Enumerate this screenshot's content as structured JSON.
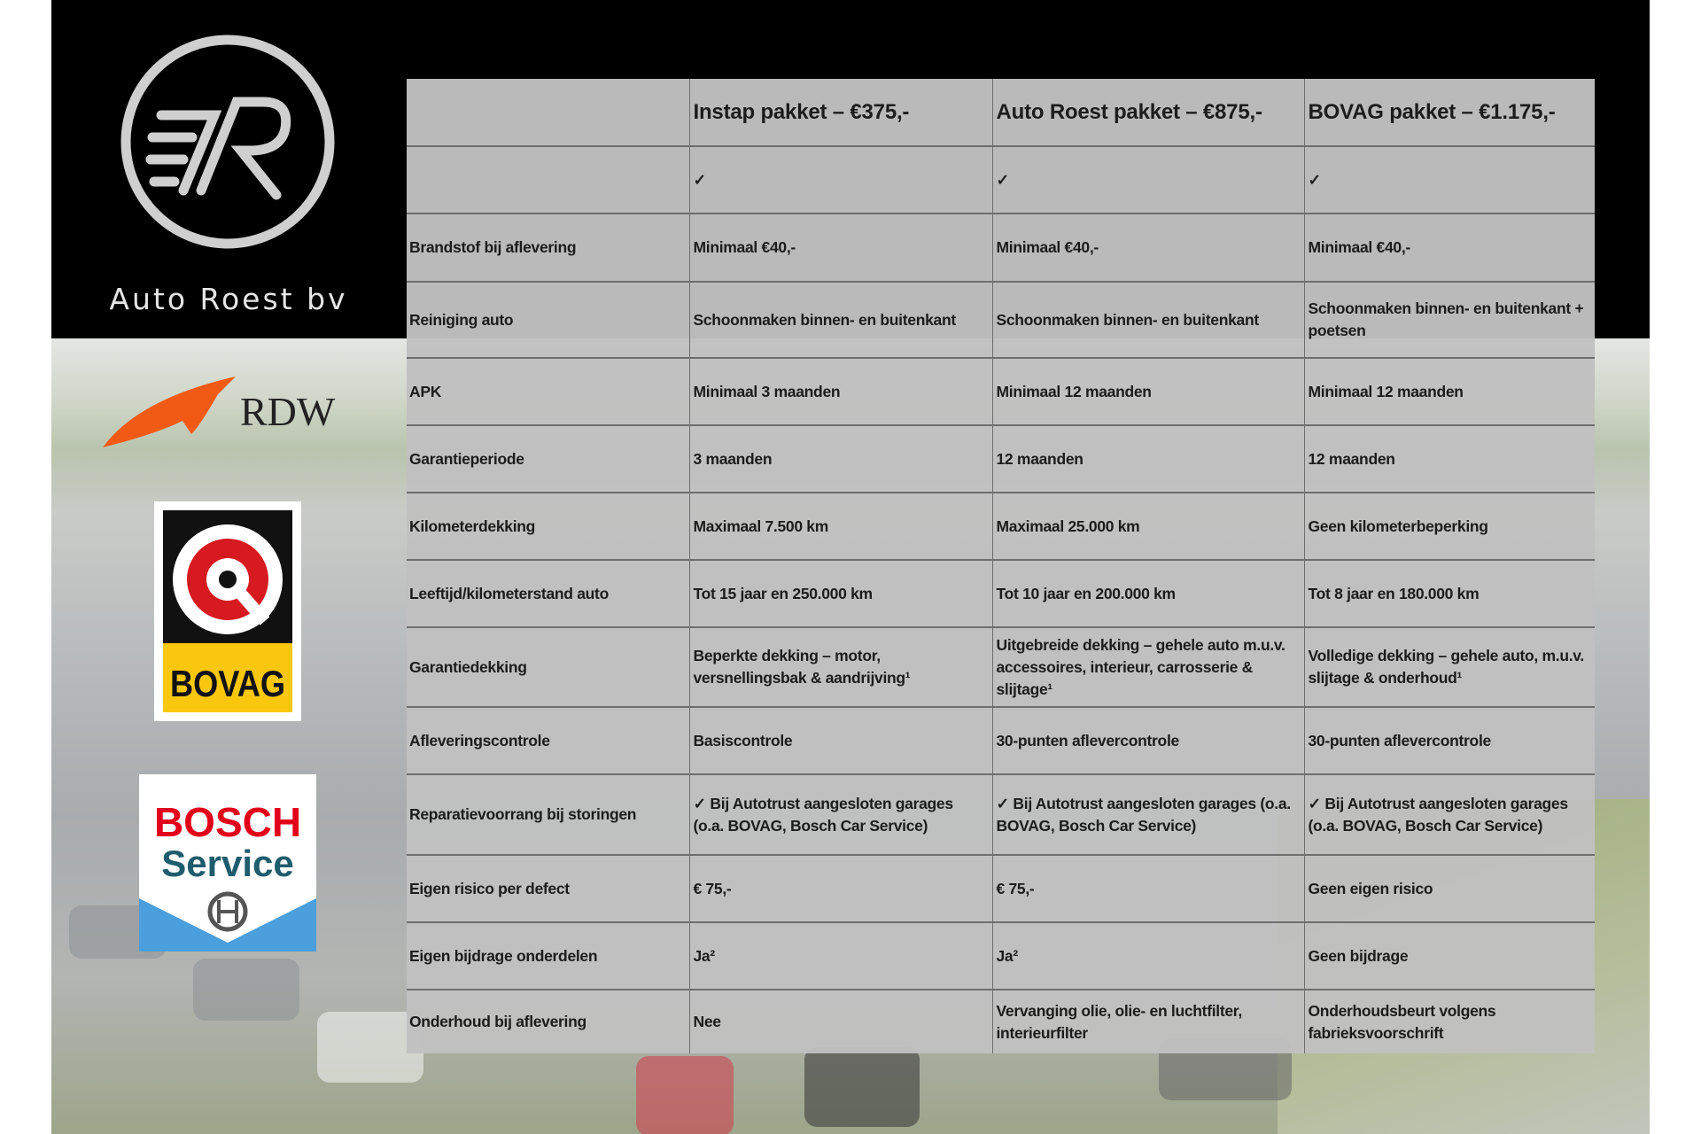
{
  "brand": {
    "name": "Auto Roest bv",
    "logo_letters": "R"
  },
  "logos": {
    "rdw": "RDW",
    "bovag": "BOVAG",
    "bosch_line1": "BOSCH",
    "bosch_line2": "Service"
  },
  "colors": {
    "rdw_orange": "#f05a14",
    "bovag_yellow": "#f9c80e",
    "bovag_red": "#d71920",
    "bosch_red": "#e2001a",
    "bosch_teal": "#1f5d6e",
    "bosch_blue": "#4a9fdc"
  },
  "table": {
    "headers": [
      "",
      "Instap pakket – €375,-",
      "Auto Roest pakket – €875,-",
      "BOVAG pakket – €1.175,-"
    ],
    "rows": [
      [
        "",
        "✓",
        "✓",
        "✓"
      ],
      [
        "Brandstof bij aflevering",
        "Minimaal €40,-",
        "Minimaal €40,-",
        "Minimaal €40,-"
      ],
      [
        "Reiniging auto",
        "Schoonmaken binnen- en buitenkant",
        "Schoonmaken binnen- en buitenkant",
        "Schoonmaken binnen- en buitenkant + poetsen"
      ],
      [
        "APK",
        "Minimaal 3 maanden",
        "Minimaal 12 maanden",
        "Minimaal 12 maanden"
      ],
      [
        "Garantieperiode",
        "3 maanden",
        "12 maanden",
        "12 maanden"
      ],
      [
        "Kilometerdekking",
        "Maximaal 7.500 km",
        "Maximaal 25.000 km",
        "Geen kilometerbeperking"
      ],
      [
        "Leeftijd/kilometerstand auto",
        "Tot 15 jaar en 250.000 km",
        "Tot 10 jaar en 200.000 km",
        "Tot 8 jaar en 180.000 km"
      ],
      [
        "Garantiedekking",
        "Beperkte dekking – motor, versnellingsbak & aandrijving¹",
        "Uitgebreide dekking – gehele auto m.u.v. accessoires, interieur, carrosserie & slijtage¹",
        "Volledige dekking – gehele auto, m.u.v. slijtage & onderhoud¹"
      ],
      [
        "Afleveringscontrole",
        "Basiscontrole",
        "30-punten aflevercontrole",
        "30-punten aflevercontrole"
      ],
      [
        "Reparatievoorrang bij storingen",
        "✓ Bij Autotrust aangesloten garages (o.a. BOVAG, Bosch Car Service)",
        "✓ Bij Autotrust aangesloten garages (o.a. BOVAG, Bosch Car Service)",
        "✓ Bij Autotrust aangesloten garages (o.a. BOVAG, Bosch Car Service)"
      ],
      [
        "Eigen risico per defect",
        "€ 75,-",
        "€ 75,-",
        "Geen eigen risico"
      ],
      [
        "Eigen bijdrage onderdelen",
        "Ja²",
        "Ja²",
        "Geen bijdrage"
      ],
      [
        "Onderhoud bij aflevering",
        "Nee",
        "Vervanging olie, olie- en luchtfilter, interieurfilter",
        "Onderhoudsbeurt volgens fabrieksvoorschrift"
      ]
    ]
  }
}
